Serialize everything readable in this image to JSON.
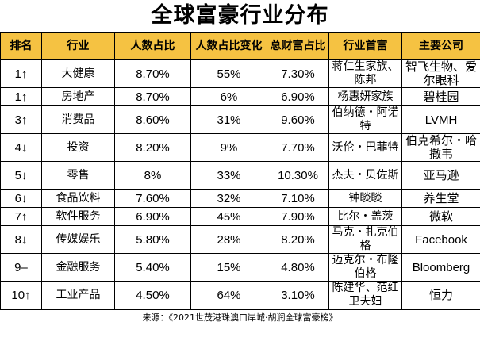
{
  "title": "全球富豪行业分布",
  "headers": [
    "排名",
    "行业",
    "人数占比",
    "人数占比变化",
    "总财富占比",
    "行业首富",
    "主要公司"
  ],
  "rows": [
    {
      "rank": "1↑",
      "industry": "大健康",
      "share": "8.70%",
      "change": "55%",
      "wealth": "7.30%",
      "richest": "蒋仁生家族、陈邦",
      "company": "智飞生物、爱尔眼科"
    },
    {
      "rank": "1↑",
      "industry": "房地产",
      "share": "8.70%",
      "change": "6%",
      "wealth": "6.90%",
      "richest": "杨惠妍家族",
      "company": "碧桂园"
    },
    {
      "rank": "3↑",
      "industry": "消费品",
      "share": "8.60%",
      "change": "31%",
      "wealth": "9.60%",
      "richest": "伯纳德・阿诺特",
      "company": "LVMH"
    },
    {
      "rank": "4↓",
      "industry": "投资",
      "share": "8.20%",
      "change": "9%",
      "wealth": "7.70%",
      "richest": "沃伦・巴菲特",
      "company": "伯克希尔・哈撒韦"
    },
    {
      "rank": "5↓",
      "industry": "零售",
      "share": "8%",
      "change": "33%",
      "wealth": "10.30%",
      "richest": "杰夫・贝佐斯",
      "company": "亚马逊"
    },
    {
      "rank": "6↓",
      "industry": "食品饮料",
      "share": "7.60%",
      "change": "32%",
      "wealth": "7.10%",
      "richest": "钟睒睒",
      "company": "养生堂"
    },
    {
      "rank": "7↑",
      "industry": "软件服务",
      "share": "6.90%",
      "change": "45%",
      "wealth": "7.90%",
      "richest": "比尔・盖茨",
      "company": "微软"
    },
    {
      "rank": "8↓",
      "industry": "传媒娱乐",
      "share": "5.80%",
      "change": "28%",
      "wealth": "8.20%",
      "richest": "马克・扎克伯格",
      "company": "Facebook"
    },
    {
      "rank": "9–",
      "industry": "金融服务",
      "share": "5.40%",
      "change": "15%",
      "wealth": "4.80%",
      "richest": "迈克尔・布隆伯格",
      "company": "Bloomberg"
    },
    {
      "rank": "10↑",
      "industry": "工业产品",
      "share": "4.50%",
      "change": "64%",
      "wealth": "3.10%",
      "richest": "陈建华、范红卫夫妇",
      "company": "恒力"
    }
  ],
  "source": "来源：《2021世茂港珠澳口岸城·胡润全球富豪榜》"
}
